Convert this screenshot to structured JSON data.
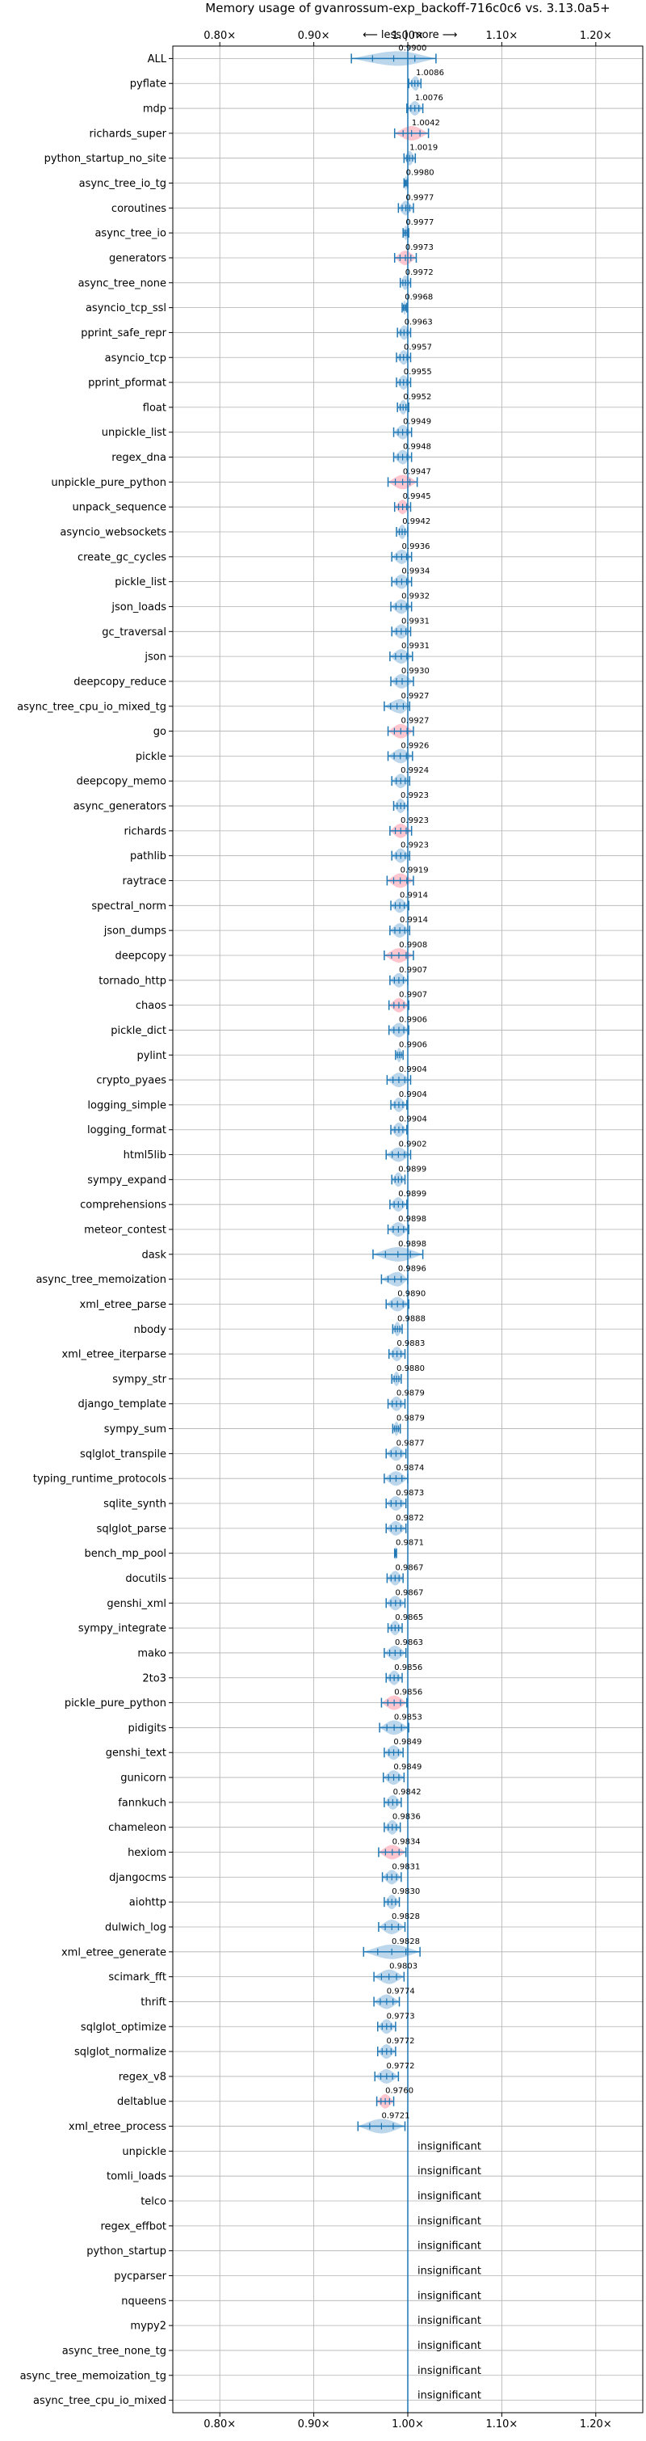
{
  "colors": {
    "accent": "#1f77b4",
    "violin": "#a6c8e6",
    "significant": "#ffb3c0",
    "grid": "#b0b0b0"
  },
  "chart_data": {
    "type": "violin",
    "title": "Memory usage of gvanrossum-exp_backoff-716c0c6 vs. 3.13.0a5+",
    "direction_labels": {
      "less": "⟵ less",
      "more": "more ⟶",
      "separator": "|"
    },
    "xlim": [
      0.75,
      1.25
    ],
    "ticks": [
      {
        "value": 0.8,
        "label": "0.80×"
      },
      {
        "value": 0.9,
        "label": "0.90×"
      },
      {
        "value": 1.0,
        "label": "1.00×"
      },
      {
        "value": 1.1,
        "label": "1.10×"
      },
      {
        "value": 1.2,
        "label": "1.20×"
      }
    ],
    "grid": true,
    "series": [
      {
        "name": "ALL",
        "value": 0.99,
        "label": "0.9900",
        "min": 0.94,
        "max": 1.03,
        "significant": false
      },
      {
        "name": "pyflate",
        "value": 1.0086,
        "label": "1.0086",
        "min": 1.001,
        "max": 1.014,
        "significant": false
      },
      {
        "name": "mdp",
        "value": 1.0076,
        "label": "1.0076",
        "min": 0.999,
        "max": 1.016,
        "significant": false
      },
      {
        "name": "richards_super",
        "value": 1.0042,
        "label": "1.0042",
        "min": 0.986,
        "max": 1.022,
        "significant": true
      },
      {
        "name": "python_startup_no_site",
        "value": 1.0019,
        "label": "1.0019",
        "min": 0.996,
        "max": 1.008,
        "significant": false
      },
      {
        "name": "async_tree_io_tg",
        "value": 0.998,
        "label": "0.9980",
        "min": 0.996,
        "max": 1.0,
        "significant": false
      },
      {
        "name": "coroutines",
        "value": 0.9977,
        "label": "0.9977",
        "min": 0.99,
        "max": 1.006,
        "significant": false
      },
      {
        "name": "async_tree_io",
        "value": 0.9977,
        "label": "0.9977",
        "min": 0.995,
        "max": 1.001,
        "significant": false
      },
      {
        "name": "generators",
        "value": 0.9973,
        "label": "0.9973",
        "min": 0.986,
        "max": 1.009,
        "significant": true
      },
      {
        "name": "async_tree_none",
        "value": 0.9972,
        "label": "0.9972",
        "min": 0.992,
        "max": 1.003,
        "significant": false
      },
      {
        "name": "asyncio_tcp_ssl",
        "value": 0.9968,
        "label": "0.9968",
        "min": 0.994,
        "max": 0.999,
        "significant": false
      },
      {
        "name": "pprint_safe_repr",
        "value": 0.9963,
        "label": "0.9963",
        "min": 0.989,
        "max": 1.003,
        "significant": false
      },
      {
        "name": "asyncio_tcp",
        "value": 0.9957,
        "label": "0.9957",
        "min": 0.988,
        "max": 1.003,
        "significant": false
      },
      {
        "name": "pprint_pformat",
        "value": 0.9955,
        "label": "0.9955",
        "min": 0.988,
        "max": 1.003,
        "significant": false
      },
      {
        "name": "float",
        "value": 0.9952,
        "label": "0.9952",
        "min": 0.989,
        "max": 1.001,
        "significant": false
      },
      {
        "name": "unpickle_list",
        "value": 0.9949,
        "label": "0.9949",
        "min": 0.985,
        "max": 1.004,
        "significant": false
      },
      {
        "name": "regex_dna",
        "value": 0.9948,
        "label": "0.9948",
        "min": 0.985,
        "max": 1.004,
        "significant": false
      },
      {
        "name": "unpickle_pure_python",
        "value": 0.9947,
        "label": "0.9947",
        "min": 0.979,
        "max": 1.01,
        "significant": true
      },
      {
        "name": "unpack_sequence",
        "value": 0.9945,
        "label": "0.9945",
        "min": 0.986,
        "max": 1.003,
        "significant": true
      },
      {
        "name": "asyncio_websockets",
        "value": 0.9942,
        "label": "0.9942",
        "min": 0.988,
        "max": 1.0,
        "significant": false
      },
      {
        "name": "create_gc_cycles",
        "value": 0.9936,
        "label": "0.9936",
        "min": 0.983,
        "max": 1.004,
        "significant": false
      },
      {
        "name": "pickle_list",
        "value": 0.9934,
        "label": "0.9934",
        "min": 0.983,
        "max": 1.004,
        "significant": false
      },
      {
        "name": "json_loads",
        "value": 0.9932,
        "label": "0.9932",
        "min": 0.982,
        "max": 1.004,
        "significant": false
      },
      {
        "name": "gc_traversal",
        "value": 0.9931,
        "label": "0.9931",
        "min": 0.983,
        "max": 1.003,
        "significant": false
      },
      {
        "name": "json",
        "value": 0.9931,
        "label": "0.9931",
        "min": 0.981,
        "max": 1.005,
        "significant": false
      },
      {
        "name": "deepcopy_reduce",
        "value": 0.993,
        "label": "0.9930",
        "min": 0.982,
        "max": 1.006,
        "significant": false
      },
      {
        "name": "async_tree_cpu_io_mixed_tg",
        "value": 0.9927,
        "label": "0.9927",
        "min": 0.975,
        "max": 1.002,
        "significant": false
      },
      {
        "name": "go",
        "value": 0.9927,
        "label": "0.9927",
        "min": 0.979,
        "max": 1.006,
        "significant": true
      },
      {
        "name": "pickle",
        "value": 0.9926,
        "label": "0.9926",
        "min": 0.979,
        "max": 1.005,
        "significant": false
      },
      {
        "name": "deepcopy_memo",
        "value": 0.9924,
        "label": "0.9924",
        "min": 0.983,
        "max": 1.002,
        "significant": false
      },
      {
        "name": "async_generators",
        "value": 0.9923,
        "label": "0.9923",
        "min": 0.985,
        "max": 1.0,
        "significant": false
      },
      {
        "name": "richards",
        "value": 0.9923,
        "label": "0.9923",
        "min": 0.981,
        "max": 1.004,
        "significant": true
      },
      {
        "name": "pathlib",
        "value": 0.9923,
        "label": "0.9923",
        "min": 0.983,
        "max": 1.002,
        "significant": false
      },
      {
        "name": "raytrace",
        "value": 0.9919,
        "label": "0.9919",
        "min": 0.978,
        "max": 1.006,
        "significant": true
      },
      {
        "name": "spectral_norm",
        "value": 0.9914,
        "label": "0.9914",
        "min": 0.982,
        "max": 1.001,
        "significant": false
      },
      {
        "name": "json_dumps",
        "value": 0.9914,
        "label": "0.9914",
        "min": 0.981,
        "max": 1.002,
        "significant": false
      },
      {
        "name": "deepcopy",
        "value": 0.9908,
        "label": "0.9908",
        "min": 0.975,
        "max": 1.006,
        "significant": true
      },
      {
        "name": "tornado_http",
        "value": 0.9907,
        "label": "0.9907",
        "min": 0.981,
        "max": 1.0,
        "significant": false
      },
      {
        "name": "chaos",
        "value": 0.9907,
        "label": "0.9907",
        "min": 0.98,
        "max": 1.001,
        "significant": true
      },
      {
        "name": "pickle_dict",
        "value": 0.9906,
        "label": "0.9906",
        "min": 0.98,
        "max": 1.001,
        "significant": false
      },
      {
        "name": "pylint",
        "value": 0.9906,
        "label": "0.9906",
        "min": 0.987,
        "max": 0.995,
        "significant": false
      },
      {
        "name": "crypto_pyaes",
        "value": 0.9904,
        "label": "0.9904",
        "min": 0.978,
        "max": 1.003,
        "significant": false
      },
      {
        "name": "logging_simple",
        "value": 0.9904,
        "label": "0.9904",
        "min": 0.982,
        "max": 0.999,
        "significant": false
      },
      {
        "name": "logging_format",
        "value": 0.9904,
        "label": "0.9904",
        "min": 0.982,
        "max": 0.999,
        "significant": false
      },
      {
        "name": "html5lib",
        "value": 0.9902,
        "label": "0.9902",
        "min": 0.977,
        "max": 1.003,
        "significant": false
      },
      {
        "name": "sympy_expand",
        "value": 0.9899,
        "label": "0.9899",
        "min": 0.983,
        "max": 0.997,
        "significant": false
      },
      {
        "name": "comprehensions",
        "value": 0.9899,
        "label": "0.9899",
        "min": 0.981,
        "max": 0.999,
        "significant": false
      },
      {
        "name": "meteor_contest",
        "value": 0.9898,
        "label": "0.9898",
        "min": 0.979,
        "max": 1.001,
        "significant": false
      },
      {
        "name": "dask",
        "value": 0.9898,
        "label": "0.9898",
        "min": 0.963,
        "max": 1.016,
        "significant": false
      },
      {
        "name": "async_tree_memoization",
        "value": 0.9896,
        "label": "0.9896",
        "min": 0.972,
        "max": 1.0,
        "significant": false
      },
      {
        "name": "xml_etree_parse",
        "value": 0.989,
        "label": "0.9890",
        "min": 0.977,
        "max": 1.001,
        "significant": false
      },
      {
        "name": "nbody",
        "value": 0.9888,
        "label": "0.9888",
        "min": 0.984,
        "max": 0.994,
        "significant": false
      },
      {
        "name": "xml_etree_iterparse",
        "value": 0.9883,
        "label": "0.9883",
        "min": 0.98,
        "max": 0.997,
        "significant": false
      },
      {
        "name": "sympy_str",
        "value": 0.988,
        "label": "0.9880",
        "min": 0.983,
        "max": 0.993,
        "significant": false
      },
      {
        "name": "django_template",
        "value": 0.9879,
        "label": "0.9879",
        "min": 0.979,
        "max": 0.997,
        "significant": false
      },
      {
        "name": "sympy_sum",
        "value": 0.9879,
        "label": "0.9879",
        "min": 0.984,
        "max": 0.992,
        "significant": false
      },
      {
        "name": "sqlglot_transpile",
        "value": 0.9877,
        "label": "0.9877",
        "min": 0.977,
        "max": 0.998,
        "significant": false
      },
      {
        "name": "typing_runtime_protocols",
        "value": 0.9874,
        "label": "0.9874",
        "min": 0.975,
        "max": 1.0,
        "significant": false
      },
      {
        "name": "sqlite_synth",
        "value": 0.9873,
        "label": "0.9873",
        "min": 0.977,
        "max": 0.998,
        "significant": false
      },
      {
        "name": "sqlglot_parse",
        "value": 0.9872,
        "label": "0.9872",
        "min": 0.977,
        "max": 0.998,
        "significant": false
      },
      {
        "name": "bench_mp_pool",
        "value": 0.9871,
        "label": "0.9871",
        "min": 0.986,
        "max": 0.988,
        "significant": false
      },
      {
        "name": "docutils",
        "value": 0.9867,
        "label": "0.9867",
        "min": 0.978,
        "max": 0.995,
        "significant": false
      },
      {
        "name": "genshi_xml",
        "value": 0.9867,
        "label": "0.9867",
        "min": 0.977,
        "max": 0.997,
        "significant": false
      },
      {
        "name": "sympy_integrate",
        "value": 0.9865,
        "label": "0.9865",
        "min": 0.979,
        "max": 0.994,
        "significant": false
      },
      {
        "name": "mako",
        "value": 0.9863,
        "label": "0.9863",
        "min": 0.975,
        "max": 0.998,
        "significant": false
      },
      {
        "name": "2to3",
        "value": 0.9856,
        "label": "0.9856",
        "min": 0.977,
        "max": 0.994,
        "significant": false
      },
      {
        "name": "pickle_pure_python",
        "value": 0.9856,
        "label": "0.9856",
        "min": 0.972,
        "max": 0.999,
        "significant": true
      },
      {
        "name": "pidigits",
        "value": 0.9853,
        "label": "0.9853",
        "min": 0.97,
        "max": 1.001,
        "significant": false
      },
      {
        "name": "genshi_text",
        "value": 0.9849,
        "label": "0.9849",
        "min": 0.975,
        "max": 0.995,
        "significant": false
      },
      {
        "name": "gunicorn",
        "value": 0.9849,
        "label": "0.9849",
        "min": 0.974,
        "max": 0.996,
        "significant": false
      },
      {
        "name": "fannkuch",
        "value": 0.9842,
        "label": "0.9842",
        "min": 0.975,
        "max": 0.993,
        "significant": false
      },
      {
        "name": "chameleon",
        "value": 0.9836,
        "label": "0.9836",
        "min": 0.975,
        "max": 0.992,
        "significant": false
      },
      {
        "name": "hexiom",
        "value": 0.9834,
        "label": "0.9834",
        "min": 0.969,
        "max": 0.998,
        "significant": true
      },
      {
        "name": "djangocms",
        "value": 0.9831,
        "label": "0.9831",
        "min": 0.973,
        "max": 0.993,
        "significant": false
      },
      {
        "name": "aiohttp",
        "value": 0.983,
        "label": "0.9830",
        "min": 0.975,
        "max": 0.991,
        "significant": false
      },
      {
        "name": "dulwich_log",
        "value": 0.9828,
        "label": "0.9828",
        "min": 0.969,
        "max": 0.997,
        "significant": false
      },
      {
        "name": "xml_etree_generate",
        "value": 0.9828,
        "label": "0.9828",
        "min": 0.953,
        "max": 1.013,
        "significant": false
      },
      {
        "name": "scimark_fft",
        "value": 0.9803,
        "label": "0.9803",
        "min": 0.964,
        "max": 0.996,
        "significant": false
      },
      {
        "name": "thrift",
        "value": 0.9774,
        "label": "0.9774",
        "min": 0.964,
        "max": 0.991,
        "significant": false
      },
      {
        "name": "sqlglot_optimize",
        "value": 0.9773,
        "label": "0.9773",
        "min": 0.968,
        "max": 0.987,
        "significant": false
      },
      {
        "name": "sqlglot_normalize",
        "value": 0.9772,
        "label": "0.9772",
        "min": 0.968,
        "max": 0.987,
        "significant": false
      },
      {
        "name": "regex_v8",
        "value": 0.9772,
        "label": "0.9772",
        "min": 0.965,
        "max": 0.99,
        "significant": false
      },
      {
        "name": "deltablue",
        "value": 0.976,
        "label": "0.9760",
        "min": 0.967,
        "max": 0.985,
        "significant": true
      },
      {
        "name": "xml_etree_process",
        "value": 0.9721,
        "label": "0.9721",
        "min": 0.947,
        "max": 0.997,
        "significant": false
      },
      {
        "name": "unpickle",
        "value": null,
        "label": "insignificant",
        "significant": false
      },
      {
        "name": "tomli_loads",
        "value": null,
        "label": "insignificant",
        "significant": false
      },
      {
        "name": "telco",
        "value": null,
        "label": "insignificant",
        "significant": false
      },
      {
        "name": "regex_effbot",
        "value": null,
        "label": "insignificant",
        "significant": false
      },
      {
        "name": "python_startup",
        "value": null,
        "label": "insignificant",
        "significant": false
      },
      {
        "name": "pycparser",
        "value": null,
        "label": "insignificant",
        "significant": false
      },
      {
        "name": "nqueens",
        "value": null,
        "label": "insignificant",
        "significant": false
      },
      {
        "name": "mypy2",
        "value": null,
        "label": "insignificant",
        "significant": false
      },
      {
        "name": "async_tree_none_tg",
        "value": null,
        "label": "insignificant",
        "significant": false
      },
      {
        "name": "async_tree_memoization_tg",
        "value": null,
        "label": "insignificant",
        "significant": false
      },
      {
        "name": "async_tree_cpu_io_mixed",
        "value": null,
        "label": "insignificant",
        "significant": false
      }
    ]
  }
}
